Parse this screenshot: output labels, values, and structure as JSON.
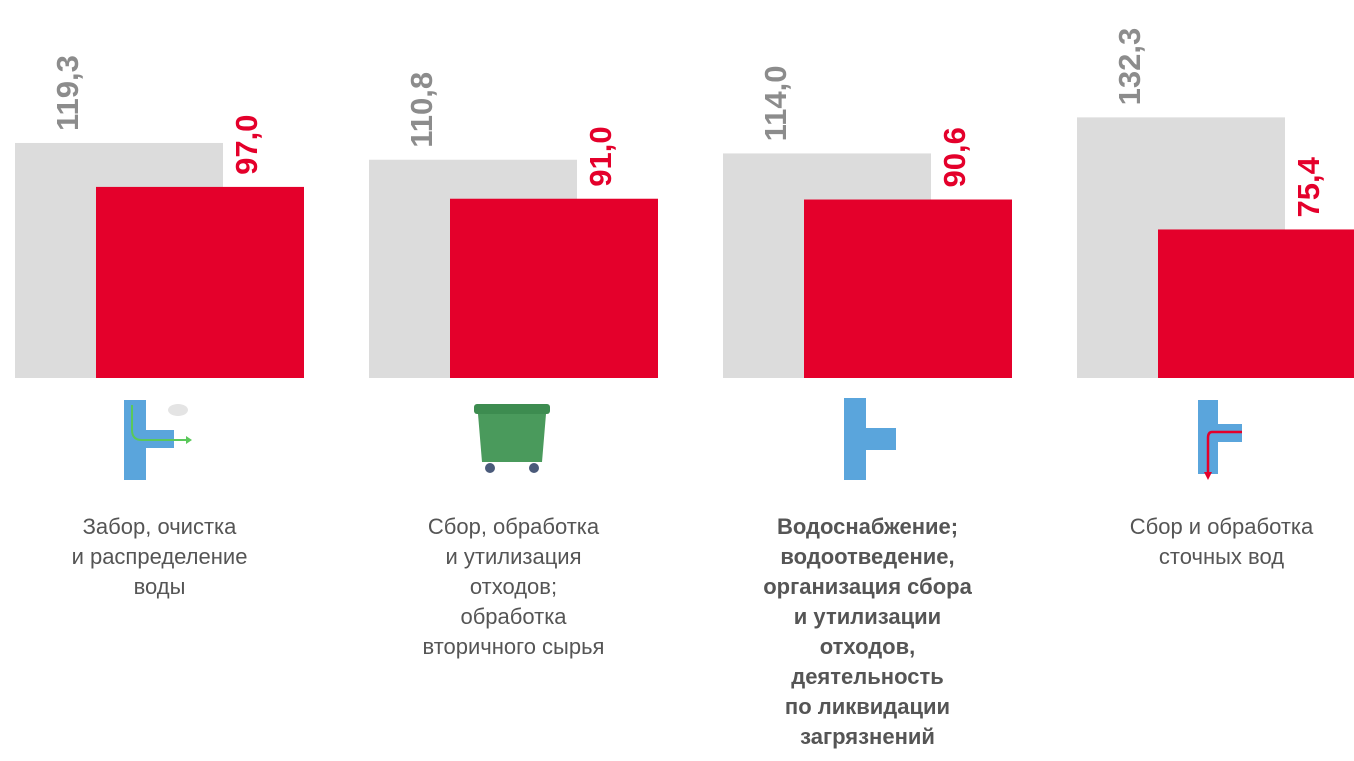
{
  "chart_data": {
    "type": "bar",
    "categories": [
      "Забор, очистка\nи распределение\nводы",
      "Сбор, обработка\nи утилизация\nотходов;\nобработка\nвторичного сырья",
      "Водоснабжение;\nводоотведение,\nорганизация сбора\nи утилизации\nотходов,\nдеятельность\nпо ликвидации\nзагрязнений",
      "Сбор и обработка\nсточных вод"
    ],
    "series": [
      {
        "color": "#dcdcdc",
        "label_color": "#8c8c8c",
        "values": [
          119.3,
          110.8,
          114.0,
          132.3
        ],
        "value_labels": [
          "119,3",
          "110,8",
          "114,0",
          "132,3"
        ]
      },
      {
        "color": "#e4002b",
        "label_color": "#e4002b",
        "values": [
          97.0,
          91.0,
          90.6,
          75.4
        ],
        "value_labels": [
          "97,0",
          "91,0",
          "90,6",
          "75,4"
        ]
      }
    ]
  }
}
